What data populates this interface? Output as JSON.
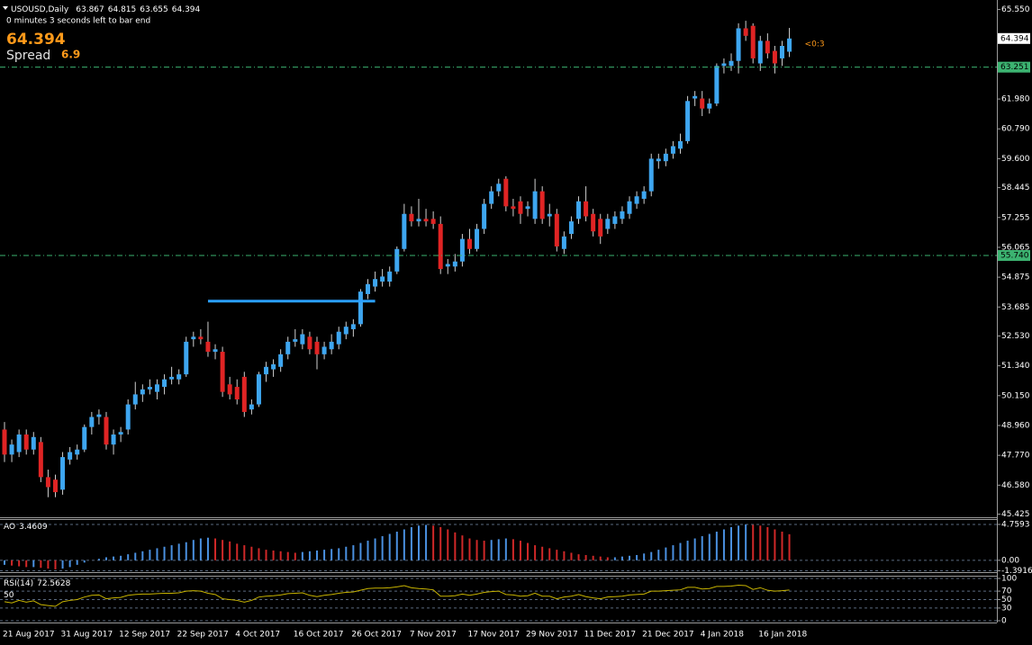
{
  "chart_data": [
    {
      "type": "candlestick",
      "title": "USOUSD,Daily",
      "status": "0 minutes 3 seconds left to bar end",
      "spread_label": "Spread",
      "spread": 6.9,
      "countdown": "<0:3",
      "up_color": "#3ea6f0",
      "down_color": "#e02424",
      "wick_color": "#cfcfcf",
      "hline_color": "#3cb371",
      "categories": [
        "21 Aug 2017",
        null,
        null,
        null,
        null,
        null,
        null,
        null,
        "31 Aug 2017",
        null,
        null,
        null,
        null,
        null,
        null,
        null,
        "12 Sep 2017",
        null,
        null,
        null,
        null,
        null,
        null,
        null,
        "22 Sep 2017",
        null,
        null,
        null,
        null,
        null,
        null,
        null,
        "4 Oct 2017",
        null,
        null,
        null,
        null,
        null,
        null,
        null,
        "16 Oct 2017",
        null,
        null,
        null,
        null,
        null,
        null,
        null,
        "26 Oct 2017",
        null,
        null,
        null,
        null,
        null,
        null,
        null,
        "7 Nov 2017",
        null,
        null,
        null,
        null,
        null,
        null,
        null,
        "17 Nov 2017",
        null,
        null,
        null,
        null,
        null,
        null,
        null,
        "29 Nov 2017",
        null,
        null,
        null,
        null,
        null,
        null,
        null,
        "11 Dec 2017",
        null,
        null,
        null,
        null,
        null,
        null,
        null,
        "21 Dec 2017",
        null,
        null,
        null,
        null,
        null,
        null,
        null,
        "4 Jan 2018",
        null,
        null,
        null,
        null,
        null,
        null,
        null,
        "16 Jan 2018",
        null,
        null,
        null,
        null
      ],
      "open": [
        48.8,
        47.8,
        47.9,
        48.6,
        48.0,
        48.3,
        46.9,
        46.8,
        46.4,
        47.6,
        47.8,
        48.0,
        48.9,
        49.3,
        49.3,
        48.2,
        48.6,
        48.8,
        49.8,
        50.2,
        50.4,
        50.3,
        50.5,
        50.8,
        50.8,
        51.0,
        52.4,
        52.5,
        52.3,
        51.9,
        51.9,
        50.6,
        50.5,
        50.9,
        49.6,
        49.8,
        51.0,
        51.2,
        51.3,
        51.8,
        52.3,
        52.2,
        52.5,
        52.3,
        51.8,
        52.0,
        52.2,
        52.6,
        52.8,
        53.0,
        54.2,
        54.5,
        54.7,
        54.7,
        55.1,
        56.0,
        57.4,
        57.1,
        57.2,
        57.2,
        57.0,
        55.3,
        55.3,
        55.5,
        56.4,
        56.0,
        56.8,
        57.8,
        58.3,
        58.8,
        57.7,
        57.9,
        57.6,
        57.2,
        58.3,
        57.3,
        57.4,
        56.0,
        56.6,
        57.2,
        57.9,
        57.4,
        57.2,
        56.8,
        57.0,
        57.2,
        57.4,
        57.8,
        58.0,
        58.3,
        59.5,
        59.5,
        59.8,
        60.0,
        60.3,
        62.0,
        62.0,
        61.6,
        61.8,
        63.3,
        63.3,
        63.5,
        64.8,
        64.9,
        63.4,
        64.3,
        63.9,
        63.6,
        63.867
      ],
      "high": [
        49.1,
        48.4,
        48.8,
        48.8,
        48.7,
        48.5,
        47.2,
        47.0,
        47.9,
        48.1,
        48.2,
        49.0,
        49.5,
        49.6,
        49.5,
        48.8,
        48.9,
        50.0,
        50.7,
        50.6,
        50.8,
        50.8,
        51.0,
        51.3,
        51.2,
        52.5,
        52.7,
        52.8,
        53.1,
        52.2,
        52.1,
        50.9,
        50.8,
        51.1,
        50.0,
        51.1,
        51.5,
        51.6,
        52.0,
        52.5,
        52.8,
        52.8,
        52.7,
        52.5,
        52.3,
        52.6,
        52.9,
        53.1,
        53.2,
        54.4,
        54.8,
        55.1,
        55.2,
        55.3,
        56.1,
        57.8,
        57.7,
        58.0,
        57.6,
        57.5,
        57.3,
        55.6,
        55.8,
        56.6,
        56.8,
        57.0,
        58.0,
        58.5,
        58.8,
        58.9,
        58.0,
        58.1,
        57.9,
        58.8,
        58.5,
        57.8,
        57.6,
        56.7,
        57.3,
        58.1,
        58.5,
        57.6,
        57.4,
        57.4,
        57.5,
        57.7,
        58.1,
        58.3,
        58.5,
        59.8,
        59.8,
        60.0,
        60.3,
        60.6,
        62.1,
        62.3,
        62.3,
        62.0,
        63.4,
        63.6,
        63.8,
        65.0,
        65.1,
        65.0,
        64.5,
        64.6,
        64.1,
        64.3,
        64.815
      ],
      "low": [
        47.5,
        47.5,
        47.7,
        47.8,
        47.8,
        46.7,
        46.1,
        46.1,
        46.2,
        47.4,
        47.6,
        47.9,
        48.6,
        49.0,
        48.0,
        47.8,
        48.3,
        48.6,
        49.6,
        49.9,
        50.2,
        50.0,
        50.2,
        50.6,
        50.6,
        50.9,
        52.1,
        52.2,
        51.7,
        51.6,
        50.1,
        50.0,
        49.8,
        49.3,
        49.4,
        49.7,
        50.7,
        50.9,
        51.1,
        51.6,
        52.1,
        52.0,
        51.8,
        51.2,
        51.6,
        51.8,
        52.0,
        52.4,
        52.5,
        52.9,
        54.0,
        54.3,
        54.5,
        54.5,
        55.0,
        55.9,
        56.9,
        56.9,
        56.9,
        56.8,
        55.0,
        55.0,
        55.1,
        55.3,
        55.8,
        55.9,
        56.6,
        57.6,
        58.1,
        57.5,
        57.3,
        57.0,
        57.3,
        57.0,
        57.0,
        56.9,
        55.9,
        55.8,
        56.4,
        57.0,
        57.1,
        56.5,
        56.2,
        56.6,
        56.8,
        57.0,
        57.2,
        57.6,
        57.8,
        58.1,
        59.2,
        59.3,
        59.6,
        59.8,
        60.2,
        61.7,
        61.3,
        61.4,
        61.7,
        63.0,
        63.1,
        63.0,
        64.3,
        63.4,
        63.1,
        63.6,
        63.0,
        63.3,
        63.655
      ],
      "close": [
        47.8,
        48.2,
        48.6,
        48.0,
        48.5,
        46.9,
        46.5,
        46.3,
        47.7,
        47.9,
        48.0,
        48.9,
        49.3,
        49.4,
        48.2,
        48.6,
        48.7,
        49.8,
        50.2,
        50.4,
        50.5,
        50.6,
        50.8,
        50.9,
        51.0,
        52.3,
        52.5,
        52.4,
        51.9,
        52.0,
        50.3,
        50.2,
        50.0,
        49.5,
        49.8,
        51.0,
        51.3,
        51.4,
        51.8,
        52.3,
        52.4,
        52.6,
        52.0,
        51.8,
        52.1,
        52.3,
        52.7,
        52.9,
        53.0,
        54.3,
        54.6,
        54.8,
        54.9,
        55.1,
        56.0,
        57.4,
        57.1,
        57.2,
        57.1,
        57.0,
        55.2,
        55.4,
        55.5,
        56.4,
        56.0,
        56.8,
        57.8,
        58.3,
        58.6,
        57.7,
        57.6,
        57.4,
        57.7,
        58.3,
        57.2,
        57.4,
        56.1,
        56.5,
        57.1,
        57.9,
        57.3,
        56.7,
        56.5,
        57.2,
        57.3,
        57.5,
        57.9,
        58.1,
        58.3,
        59.6,
        59.6,
        59.8,
        60.1,
        60.3,
        61.9,
        62.1,
        61.6,
        61.8,
        63.3,
        63.4,
        63.5,
        64.8,
        64.5,
        63.6,
        64.3,
        63.8,
        63.4,
        64.1,
        64.394
      ],
      "ylim": [
        45.3,
        65.75
      ],
      "yticks": [
        {
          "value": 65.55,
          "label": "65.550"
        },
        {
          "value": 61.98,
          "label": "61.980"
        },
        {
          "value": 60.79,
          "label": "60.790"
        },
        {
          "value": 59.6,
          "label": "59.600"
        },
        58.445,
        57.255,
        56.065,
        54.875,
        53.685,
        {
          "value": 52.53,
          "label": "52.530"
        },
        {
          "value": 51.34,
          "label": "51.340"
        },
        {
          "value": 50.15,
          "label": "50.150"
        },
        {
          "value": 48.96,
          "label": "48.960"
        },
        {
          "value": 47.77,
          "label": "47.770"
        },
        {
          "value": 46.58,
          "label": "46.580"
        },
        45.425
      ],
      "hlines": [
        63.251,
        {
          "value": 55.74,
          "label": "55.740"
        }
      ],
      "trendline": {
        "value": 53.92,
        "bars": [
          28,
          51
        ],
        "color": "#2aa0ff"
      }
    },
    {
      "type": "bar",
      "name": "AO",
      "up_color": "#4a90e0",
      "down_color": "#d02828",
      "grid": true,
      "values": [
        -0.6,
        -0.7,
        -0.8,
        -0.9,
        -0.9,
        -1.0,
        -1.1,
        -1.2,
        -1.1,
        -0.9,
        -0.6,
        -0.3,
        0.0,
        0.2,
        0.4,
        0.5,
        0.6,
        0.8,
        1.0,
        1.2,
        1.4,
        1.6,
        1.8,
        2.0,
        2.2,
        2.4,
        2.7,
        2.9,
        3.0,
        2.9,
        2.7,
        2.5,
        2.2,
        2.0,
        1.8,
        1.6,
        1.4,
        1.3,
        1.2,
        1.1,
        1.0,
        1.1,
        1.2,
        1.3,
        1.4,
        1.5,
        1.6,
        1.8,
        2.0,
        2.3,
        2.6,
        2.9,
        3.2,
        3.5,
        3.8,
        4.1,
        4.4,
        4.6,
        4.7,
        4.6,
        4.4,
        4.1,
        3.7,
        3.3,
        2.9,
        2.7,
        2.6,
        2.7,
        2.8,
        2.9,
        2.8,
        2.6,
        2.3,
        2.0,
        1.8,
        1.6,
        1.4,
        1.2,
        1.0,
        0.8,
        0.7,
        0.6,
        0.5,
        0.4,
        0.4,
        0.5,
        0.6,
        0.7,
        0.9,
        1.1,
        1.4,
        1.7,
        2.0,
        2.3,
        2.6,
        2.9,
        3.2,
        3.5,
        3.8,
        4.1,
        4.4,
        4.6,
        4.76,
        4.7,
        4.6,
        4.4,
        4.1,
        3.8,
        3.4609
      ],
      "ylim": [
        -1.45,
        5.35
      ],
      "yticks": [
        4.7593,
        {
          "value": 0,
          "label": "0.00"
        },
        -1.3916
      ]
    },
    {
      "type": "line",
      "name": "RSI(14)",
      "color": "#c8b400",
      "grid": true,
      "level": 50,
      "values": [
        45,
        42,
        48,
        44,
        47,
        38,
        36,
        34,
        45,
        48,
        50,
        56,
        60,
        61,
        52,
        54,
        55,
        60,
        62,
        63,
        63,
        64,
        65,
        65,
        66,
        70,
        71,
        70,
        65,
        62,
        52,
        50,
        48,
        44,
        48,
        56,
        58,
        59,
        61,
        64,
        65,
        66,
        60,
        57,
        60,
        62,
        65,
        67,
        68,
        72,
        76,
        77,
        77,
        78,
        80,
        83,
        78,
        76,
        75,
        73,
        58,
        58,
        59,
        63,
        60,
        63,
        67,
        69,
        70,
        62,
        61,
        58,
        59,
        65,
        58,
        58,
        52,
        56,
        58,
        62,
        57,
        54,
        52,
        56,
        57,
        58,
        61,
        62,
        63,
        70,
        70,
        71,
        72,
        73,
        79,
        79,
        75,
        76,
        81,
        81,
        82,
        84,
        83,
        74,
        78,
        72,
        70,
        71,
        72.5628
      ],
      "ylim": [
        0,
        100
      ],
      "yticks": [
        100,
        70,
        50,
        30,
        0
      ]
    }
  ]
}
